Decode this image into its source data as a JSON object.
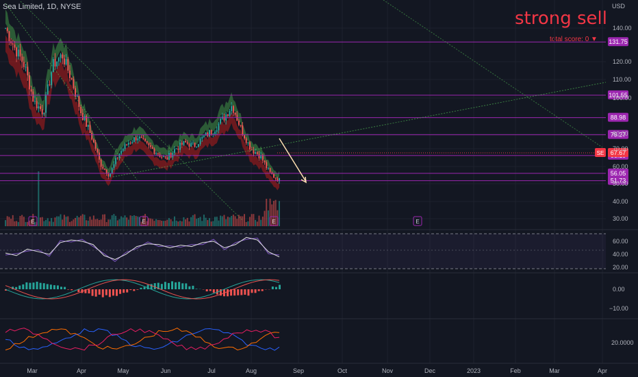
{
  "header": {
    "symbol_line": "Sea Limited, 1D, NYSE",
    "currency": "USD"
  },
  "signal": {
    "label": "strong sell",
    "score": "total score: 0 ▼"
  },
  "colors": {
    "background": "#131722",
    "level_line": "#9c27b0",
    "up": "#26a69a",
    "down": "#ef5350",
    "signal": "#f23645",
    "current_price": "#f23645"
  },
  "chart_data": [
    {
      "type": "candlestick",
      "symbol": "SE",
      "current_price": "67.67",
      "price_ticks": [
        "140.00",
        "120.00",
        "110.00",
        "100.00",
        "80.00",
        "70.00",
        "60.00",
        "50.00",
        "40.00",
        "30.00"
      ],
      "x_ticks": [
        "Mar",
        "Apr",
        "May",
        "Jun",
        "Jul",
        "Aug",
        "Sep",
        "Oct",
        "Nov",
        "Dec",
        "2023",
        "Feb",
        "Mar",
        "Apr"
      ],
      "levels": [
        {
          "label": "131.75",
          "value": 131.75
        },
        {
          "label": "101.55",
          "value": 101.55
        },
        {
          "label": "88.98",
          "value": 88.98
        },
        {
          "label": "79.27",
          "value": 79.27
        },
        {
          "label": "66.19",
          "value": 66.19
        },
        {
          "label": "56.05",
          "value": 56.05
        },
        {
          "label": "51.73",
          "value": 51.73
        }
      ],
      "earnings_markers": [
        "E",
        "E",
        "E",
        "E"
      ],
      "series": [
        {
          "name": "SE",
          "approx_close_path": [
            140,
            128,
            118,
            98,
            92,
            118,
            124,
            110,
            92,
            80,
            62,
            55,
            67,
            74,
            78,
            72,
            68,
            64,
            70,
            74,
            72,
            78,
            82,
            88,
            96,
            82,
            70,
            66,
            56,
            52
          ]
        }
      ]
    },
    {
      "type": "line",
      "panel": "oscillator",
      "y_ticks": [
        "60.00",
        "40.00",
        "20.00"
      ],
      "values": [
        42,
        38,
        48,
        44,
        40,
        58,
        62,
        60,
        55,
        38,
        32,
        40,
        52,
        56,
        55,
        50,
        54,
        52,
        58,
        60,
        50,
        55,
        66,
        62,
        44,
        36
      ]
    },
    {
      "type": "bar",
      "panel": "macd",
      "y_ticks": [
        "0.00",
        "−10.00"
      ]
    },
    {
      "type": "line",
      "panel": "directional",
      "y_ticks": [
        "20.0000"
      ]
    }
  ]
}
